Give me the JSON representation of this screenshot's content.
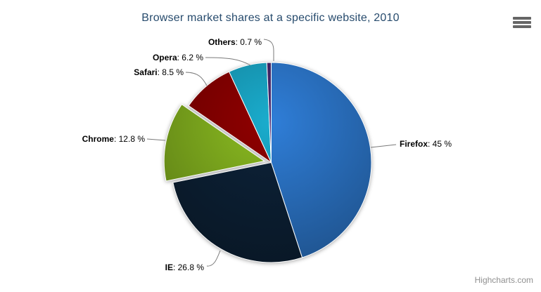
{
  "chart_data": {
    "type": "pie",
    "title": "Browser market shares at a specific website, 2010",
    "unit": "%",
    "label_format": "{name}: {y} %",
    "legend": "none",
    "start_angle_deg": 0,
    "points": [
      {
        "name": "Firefox",
        "y": 45,
        "color": "#2f7ed8",
        "sliced": false
      },
      {
        "name": "IE",
        "y": 26.8,
        "color": "#0d233a",
        "sliced": false
      },
      {
        "name": "Chrome",
        "y": 12.8,
        "color": "#8bbc21",
        "sliced": true
      },
      {
        "name": "Safari",
        "y": 8.5,
        "color": "#910000",
        "sliced": false
      },
      {
        "name": "Opera",
        "y": 6.2,
        "color": "#1aadce",
        "sliced": false
      },
      {
        "name": "Others",
        "y": 0.7,
        "color": "#492970",
        "sliced": false
      }
    ]
  },
  "title_color": "#274b6d",
  "exporting": {
    "menu_icon": "hamburger-icon"
  },
  "credits": {
    "text": "Highcharts.com"
  }
}
